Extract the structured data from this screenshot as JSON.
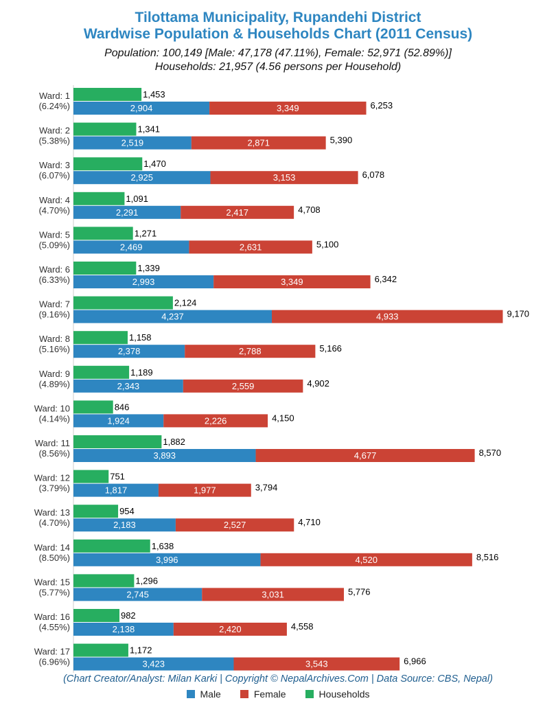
{
  "chart_data": {
    "type": "bar",
    "title": "Tilottama Municipality, Rupandehi District",
    "title2": "Wardwise Population & Households Chart (2011 Census)",
    "subtitle1": "Population: 100,149 [Male: 47,178 (47.11%), Female: 52,971 (52.89%)]",
    "subtitle2": "Households: 21,957 (4.56 persons per Household)",
    "footer": "(Chart Creator/Analyst: Milan Karki | Copyright © NepalArchives.Com | Data Source: CBS, Nepal)",
    "legend_position": "bottom",
    "colors": {
      "male": "#2e86c1",
      "female": "#cb4335",
      "households": "#27ae60"
    },
    "legend": [
      {
        "key": "male",
        "label": "Male"
      },
      {
        "key": "female",
        "label": "Female"
      },
      {
        "key": "households",
        "label": "Households"
      }
    ],
    "categories": [
      "Ward: 1",
      "Ward: 2",
      "Ward: 3",
      "Ward: 4",
      "Ward: 5",
      "Ward: 6",
      "Ward: 7",
      "Ward: 8",
      "Ward: 9",
      "Ward: 10",
      "Ward: 11",
      "Ward: 12",
      "Ward: 13",
      "Ward: 14",
      "Ward: 15",
      "Ward: 16",
      "Ward: 17"
    ],
    "percent_labels": [
      "(6.24%)",
      "(5.38%)",
      "(6.07%)",
      "(4.70%)",
      "(5.09%)",
      "(6.33%)",
      "(9.16%)",
      "(5.16%)",
      "(4.89%)",
      "(4.14%)",
      "(8.56%)",
      "(3.79%)",
      "(4.70%)",
      "(8.50%)",
      "(5.77%)",
      "(4.55%)",
      "(6.96%)"
    ],
    "series": [
      {
        "key": "households",
        "name": "Households",
        "values": [
          1453,
          1341,
          1470,
          1091,
          1271,
          1339,
          2124,
          1158,
          1189,
          846,
          1882,
          751,
          954,
          1638,
          1296,
          982,
          1172
        ]
      },
      {
        "key": "male",
        "name": "Male",
        "values": [
          2904,
          2519,
          2925,
          2291,
          2469,
          2993,
          4237,
          2378,
          2343,
          1924,
          3893,
          1817,
          2183,
          3996,
          2745,
          2138,
          3423
        ]
      },
      {
        "key": "female",
        "name": "Female",
        "values": [
          3349,
          2871,
          3153,
          2417,
          2631,
          3349,
          4933,
          2788,
          2559,
          2226,
          4677,
          1977,
          2527,
          4520,
          3031,
          2420,
          3543
        ]
      }
    ],
    "totals": [
      6253,
      5390,
      6078,
      4708,
      5100,
      6342,
      9170,
      5166,
      4902,
      4150,
      8570,
      3794,
      4710,
      8516,
      5776,
      4558,
      6966
    ],
    "xlim": [
      0,
      9500
    ]
  }
}
